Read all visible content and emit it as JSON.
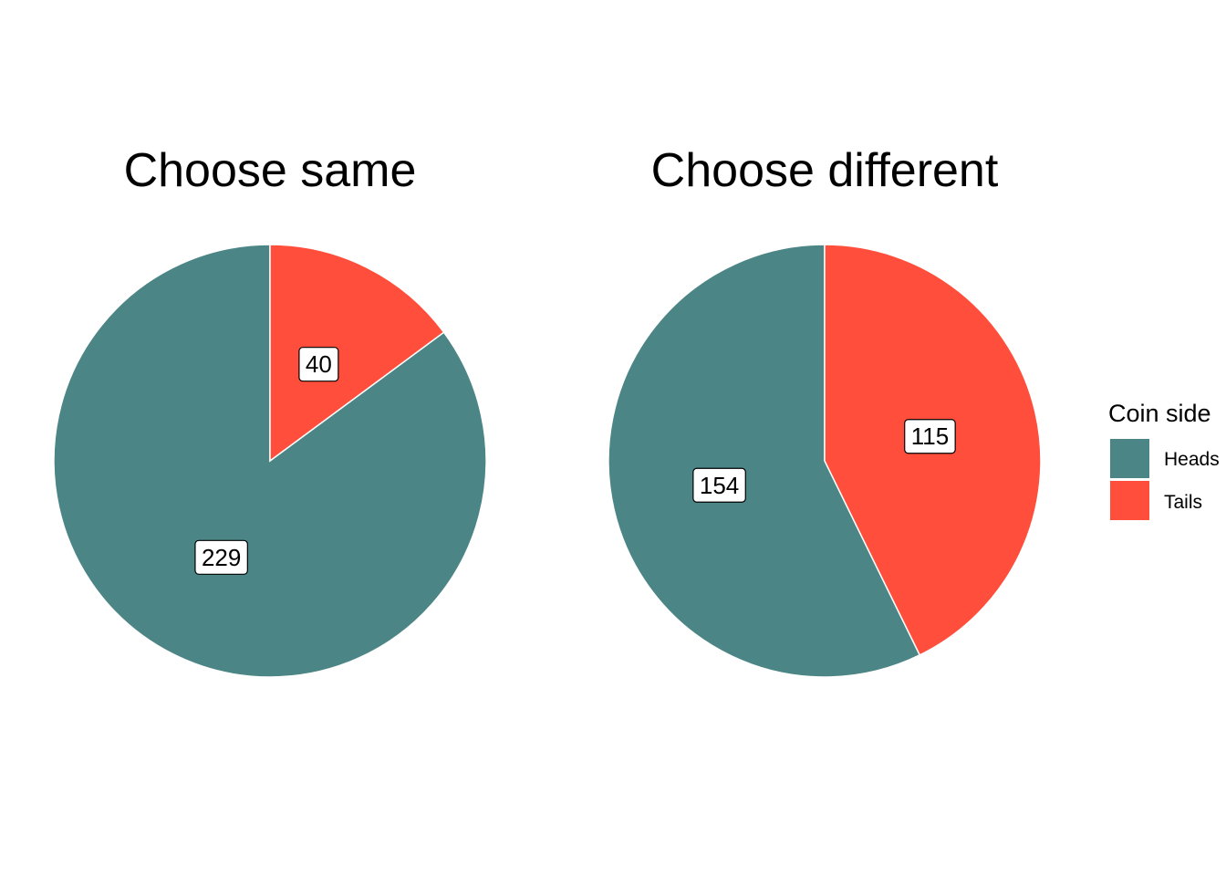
{
  "chart_data": [
    {
      "type": "pie",
      "title": "Choose same",
      "categories": [
        "Heads",
        "Tails"
      ],
      "values": [
        229,
        40
      ],
      "colors": [
        "#4B8585",
        "#FF4E3B"
      ]
    },
    {
      "type": "pie",
      "title": "Choose different",
      "categories": [
        "Heads",
        "Tails"
      ],
      "values": [
        154,
        115
      ],
      "colors": [
        "#4B8585",
        "#FF4E3B"
      ]
    }
  ],
  "legend": {
    "title": "Coin side",
    "placement": "right",
    "items": [
      {
        "label": "Heads",
        "color": "#4B8585"
      },
      {
        "label": "Tails",
        "color": "#FF4E3B"
      }
    ]
  }
}
